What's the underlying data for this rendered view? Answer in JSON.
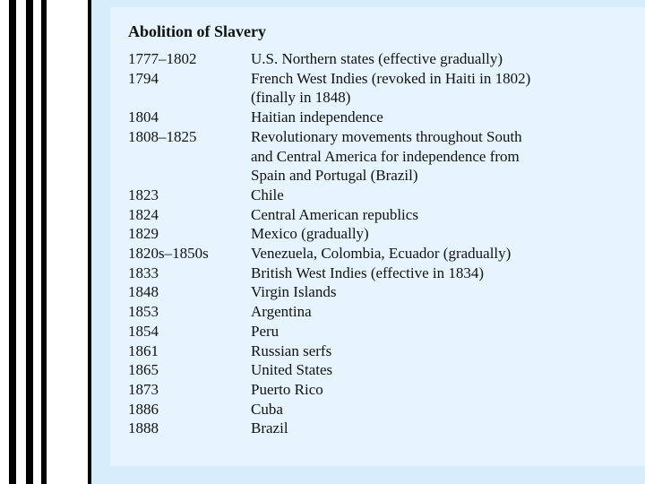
{
  "title": "Abolition of Slavery",
  "entries": [
    {
      "date": "1777–1802",
      "lines": [
        "U.S. Northern states (effective gradually)"
      ]
    },
    {
      "date": "1794",
      "lines": [
        "French West Indies (revoked in Haiti in 1802)",
        "(finally in 1848)"
      ]
    },
    {
      "date": "1804",
      "lines": [
        "Haitian independence"
      ]
    },
    {
      "date": "1808–1825",
      "lines": [
        "Revolutionary movements throughout South",
        "and Central America for independence from",
        "Spain and Portugal (Brazil)"
      ]
    },
    {
      "date": "1823",
      "lines": [
        "Chile"
      ]
    },
    {
      "date": "1824",
      "lines": [
        "Central American republics"
      ]
    },
    {
      "date": "1829",
      "lines": [
        "Mexico (gradually)"
      ]
    },
    {
      "date": "1820s–1850s",
      "lines": [
        "Venezuela, Colombia, Ecuador (gradually)"
      ]
    },
    {
      "date": "1833",
      "lines": [
        "British West Indies (effective in 1834)"
      ]
    },
    {
      "date": "1848",
      "lines": [
        "Virgin Islands"
      ]
    },
    {
      "date": "1853",
      "lines": [
        "Argentina"
      ]
    },
    {
      "date": "1854",
      "lines": [
        "Peru"
      ]
    },
    {
      "date": "1861",
      "lines": [
        "Russian serfs"
      ]
    },
    {
      "date": "1865",
      "lines": [
        "United States"
      ]
    },
    {
      "date": "1873",
      "lines": [
        "Puerto Rico"
      ]
    },
    {
      "date": "1886",
      "lines": [
        "Cuba"
      ]
    },
    {
      "date": "1888",
      "lines": [
        "Brazil"
      ]
    }
  ]
}
